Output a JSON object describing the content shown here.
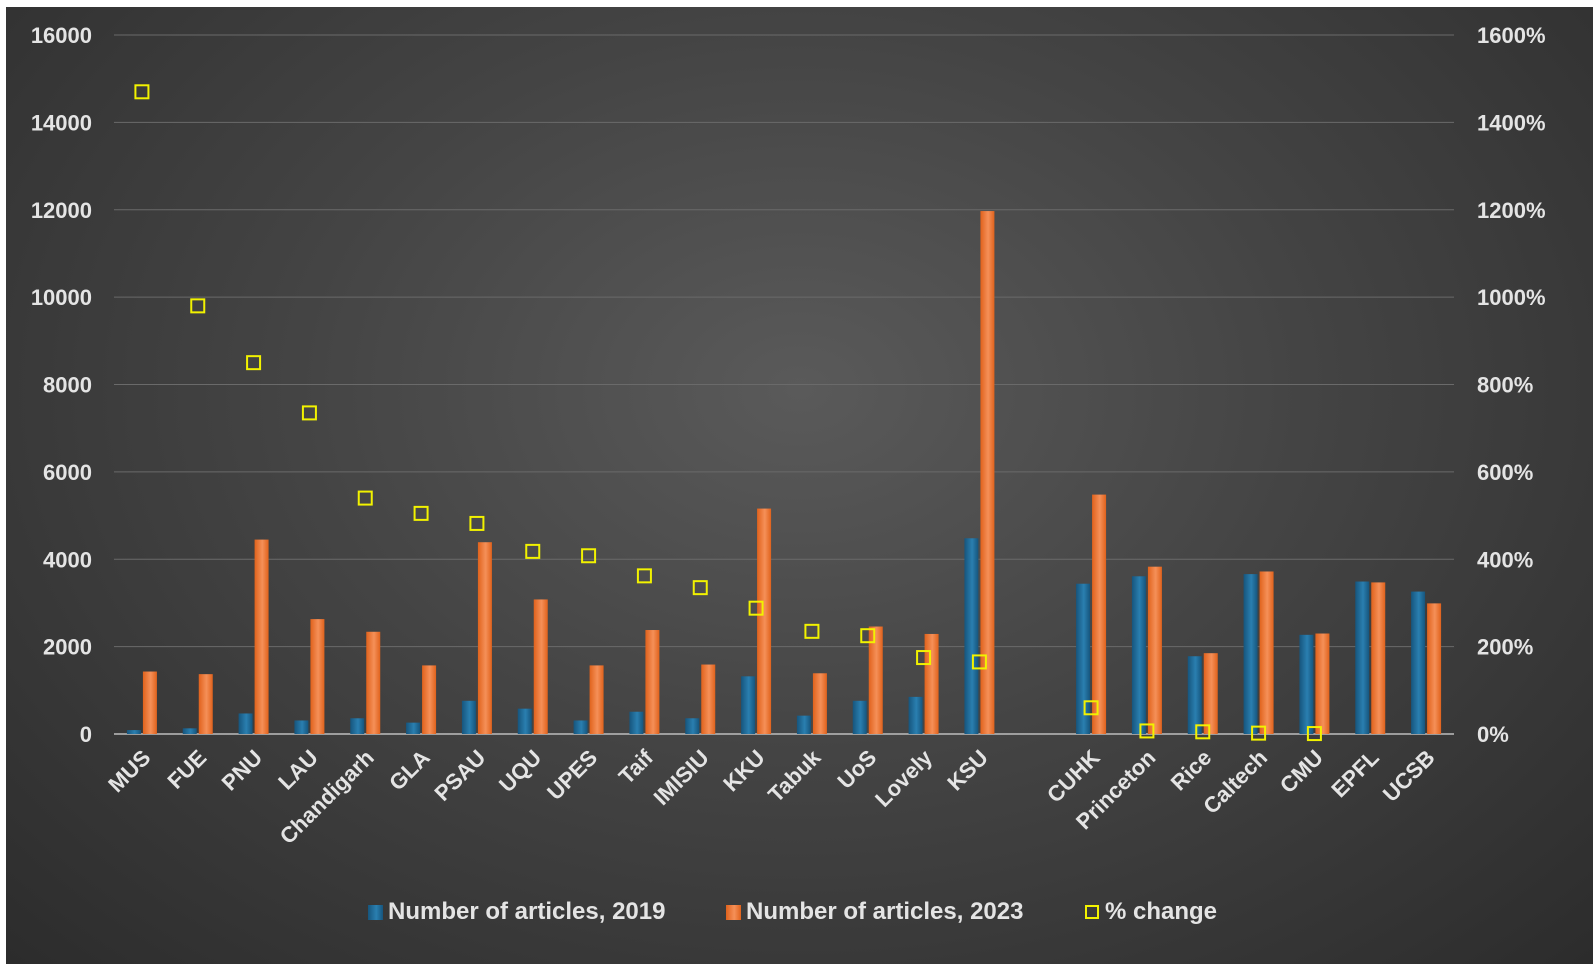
{
  "chart_data": {
    "type": "bar",
    "title": "",
    "xlabel": "",
    "ylabel": "",
    "ylim": [
      0,
      16000
    ],
    "y2lim": [
      0,
      16
    ],
    "y_ticks": [
      "0",
      "2000",
      "4000",
      "6000",
      "8000",
      "10000",
      "12000",
      "14000",
      "16000"
    ],
    "y2_ticks": [
      "0%",
      "200%",
      "400%",
      "600%",
      "800%",
      "1000%",
      "1200%",
      "1400%",
      "1600%"
    ],
    "grid": true,
    "legend_position": "bottom",
    "categories": [
      "MUS",
      "FUE",
      "PNU",
      "LAU",
      "Chandigarh",
      "GLA",
      "PSAU",
      "UQU",
      "UPES",
      "Taif",
      "IMISIU",
      "KKU",
      "Tabuk",
      "UoS",
      "Lovely",
      "KSU",
      "",
      "CUHK",
      "Princeton",
      "Rice",
      "Caltech",
      "CMU",
      "EPFL",
      "UCSB"
    ],
    "series": [
      {
        "name": "Number of articles, 2019",
        "kind": "bar",
        "axis": "left",
        "color": "#1f6a96",
        "values": [
          90,
          130,
          470,
          310,
          360,
          260,
          760,
          580,
          310,
          510,
          360,
          1320,
          420,
          760,
          850,
          4480,
          null,
          3440,
          3610,
          1780,
          3660,
          2270,
          3490,
          3260
        ]
      },
      {
        "name": "Number of articles, 2023",
        "kind": "bar",
        "axis": "left",
        "color": "#f0762e",
        "values": [
          1430,
          1370,
          4450,
          2630,
          2340,
          1570,
          4390,
          3080,
          1570,
          2380,
          1590,
          5160,
          1390,
          2460,
          2290,
          11970,
          null,
          5480,
          3830,
          1850,
          3720,
          2300,
          3470,
          2990
        ]
      },
      {
        "name": "% change",
        "kind": "marker",
        "axis": "right",
        "color": "#f2f200",
        "values": [
          14.7,
          9.8,
          8.5,
          7.35,
          5.4,
          5.05,
          4.82,
          4.18,
          4.08,
          3.62,
          3.35,
          2.88,
          2.35,
          2.25,
          1.75,
          1.65,
          null,
          0.6,
          0.07,
          0.05,
          0.02,
          0.01,
          null,
          null
        ]
      }
    ]
  }
}
